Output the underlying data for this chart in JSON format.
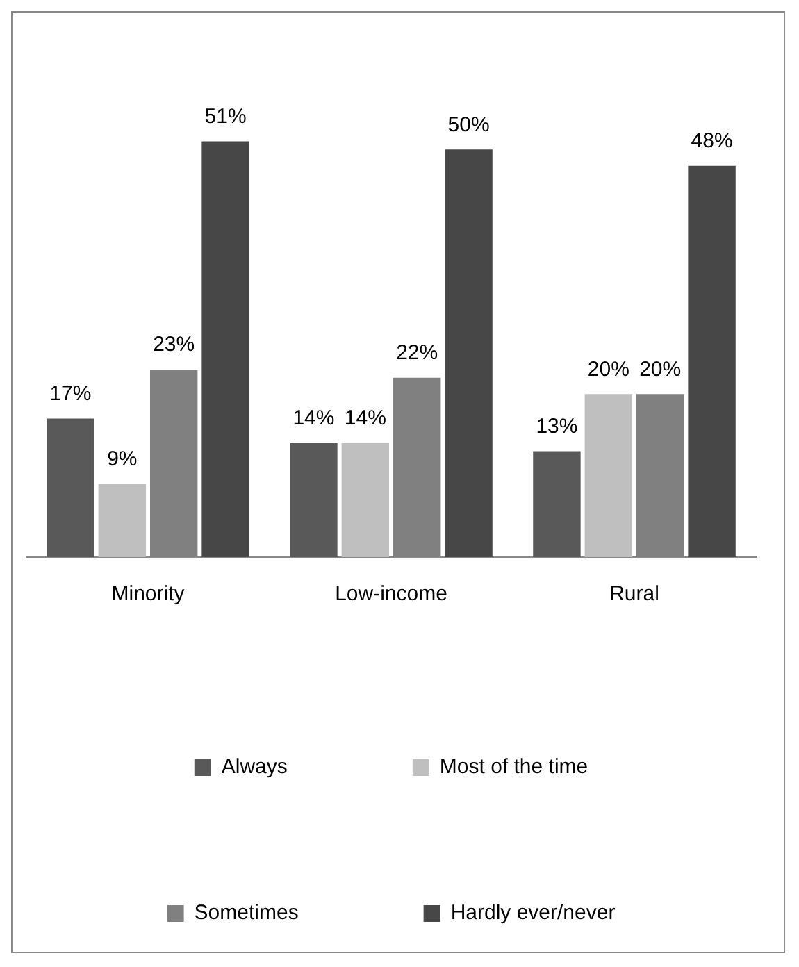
{
  "chart_data": {
    "type": "bar",
    "categories": [
      "Minority",
      "Low-income",
      "Rural"
    ],
    "series": [
      {
        "name": "Always",
        "color": "#595959",
        "values": [
          17,
          14,
          13
        ],
        "value_labels": [
          "17%",
          "14%",
          "13%"
        ]
      },
      {
        "name": "Most of the time",
        "color": "#bfbfbf",
        "values": [
          9,
          14,
          20
        ],
        "value_labels": [
          "9%",
          "14%",
          "20%"
        ]
      },
      {
        "name": "Sometimes",
        "color": "#808080",
        "values": [
          23,
          22,
          20
        ],
        "value_labels": [
          "23%",
          "22%",
          "20%"
        ]
      },
      {
        "name": "Hardly ever/never",
        "color": "#474747",
        "values": [
          51,
          50,
          48
        ],
        "value_labels": [
          "51%",
          "50%",
          "48%"
        ]
      }
    ],
    "legend": "bottom",
    "tick_labels": "x",
    "grid": false
  }
}
